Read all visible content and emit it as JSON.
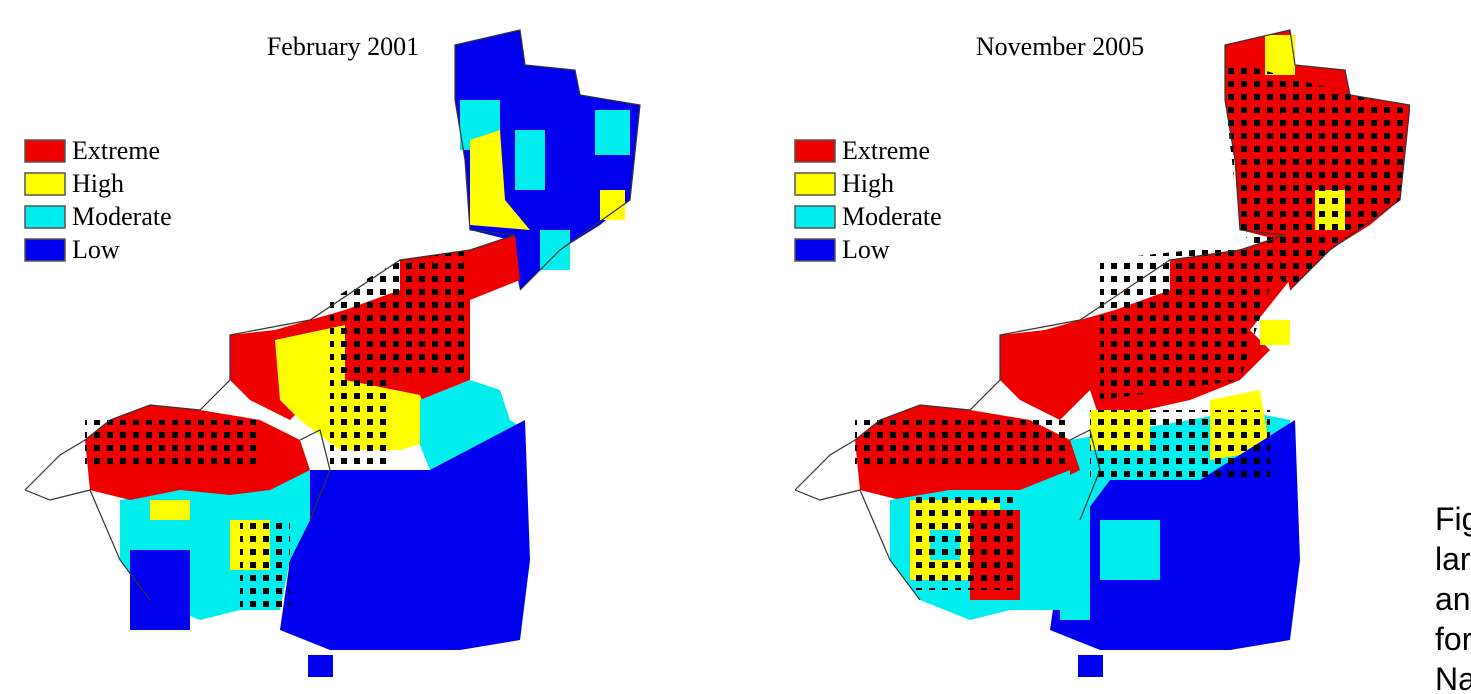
{
  "panels": [
    {
      "title": "February 2001",
      "legend": [
        "Extreme",
        "High",
        "Moderate",
        "Low"
      ]
    },
    {
      "title": "November 2005",
      "legend": [
        "Extreme",
        "High",
        "Moderate",
        "Low"
      ]
    }
  ],
  "caption": [
    "Fig",
    "lar",
    "an",
    "for",
    "Na"
  ]
}
